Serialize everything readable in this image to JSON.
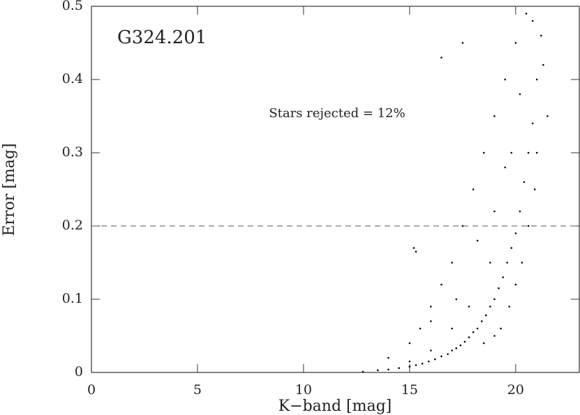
{
  "chart_data": {
    "type": "scatter",
    "annotations": [
      "G324.201",
      "Stars rejected = 12%"
    ],
    "x_label": "K−band [mag]",
    "y_label": "Error [mag]",
    "xlim": [
      0,
      23
    ],
    "ylim": [
      0,
      0.5
    ],
    "xticks": [
      0,
      5,
      10,
      15,
      20
    ],
    "yticks": [
      0,
      0.1,
      0.2,
      0.3,
      0.4,
      0.5
    ],
    "threshold": 0.2,
    "color": "#000000",
    "x": [
      12.8,
      13.5,
      14.0,
      14.5,
      15.0,
      15.3,
      15.6,
      15.9,
      16.2,
      16.5,
      16.8,
      17.0,
      17.2,
      17.4,
      17.6,
      17.8,
      18.0,
      18.2,
      18.4,
      18.6,
      18.8,
      19.0,
      19.2,
      19.4,
      19.6,
      19.8,
      20.0,
      20.2,
      20.4,
      20.6,
      20.8,
      21.0,
      21.2,
      14.0,
      15.0,
      15.5,
      16.0,
      16.5,
      17.0,
      17.5,
      18.0,
      18.5,
      19.0,
      19.5,
      20.0,
      20.5,
      16.5,
      17.5,
      15.2,
      15.3,
      16.0,
      17.2,
      18.2,
      19.0,
      19.5,
      20.2,
      21.3,
      21.5,
      20.8,
      19.8,
      18.8,
      17.8,
      17.0,
      16.0,
      15.0,
      19.3,
      19.7,
      20.0,
      18.5,
      19.0,
      20.3,
      20.6,
      20.9,
      21.0
    ],
    "y": [
      0.001,
      0.003,
      0.004,
      0.006,
      0.008,
      0.01,
      0.012,
      0.015,
      0.018,
      0.022,
      0.025,
      0.03,
      0.033,
      0.037,
      0.042,
      0.048,
      0.055,
      0.06,
      0.07,
      0.078,
      0.09,
      0.1,
      0.115,
      0.13,
      0.15,
      0.17,
      0.19,
      0.22,
      0.26,
      0.3,
      0.34,
      0.4,
      0.46,
      0.02,
      0.04,
      0.06,
      0.09,
      0.12,
      0.15,
      0.2,
      0.25,
      0.3,
      0.35,
      0.4,
      0.45,
      0.49,
      0.43,
      0.45,
      0.17,
      0.165,
      0.07,
      0.1,
      0.18,
      0.22,
      0.28,
      0.38,
      0.42,
      0.35,
      0.48,
      0.3,
      0.15,
      0.09,
      0.06,
      0.03,
      0.015,
      0.06,
      0.09,
      0.12,
      0.04,
      0.05,
      0.15,
      0.2,
      0.25,
      0.3
    ]
  }
}
